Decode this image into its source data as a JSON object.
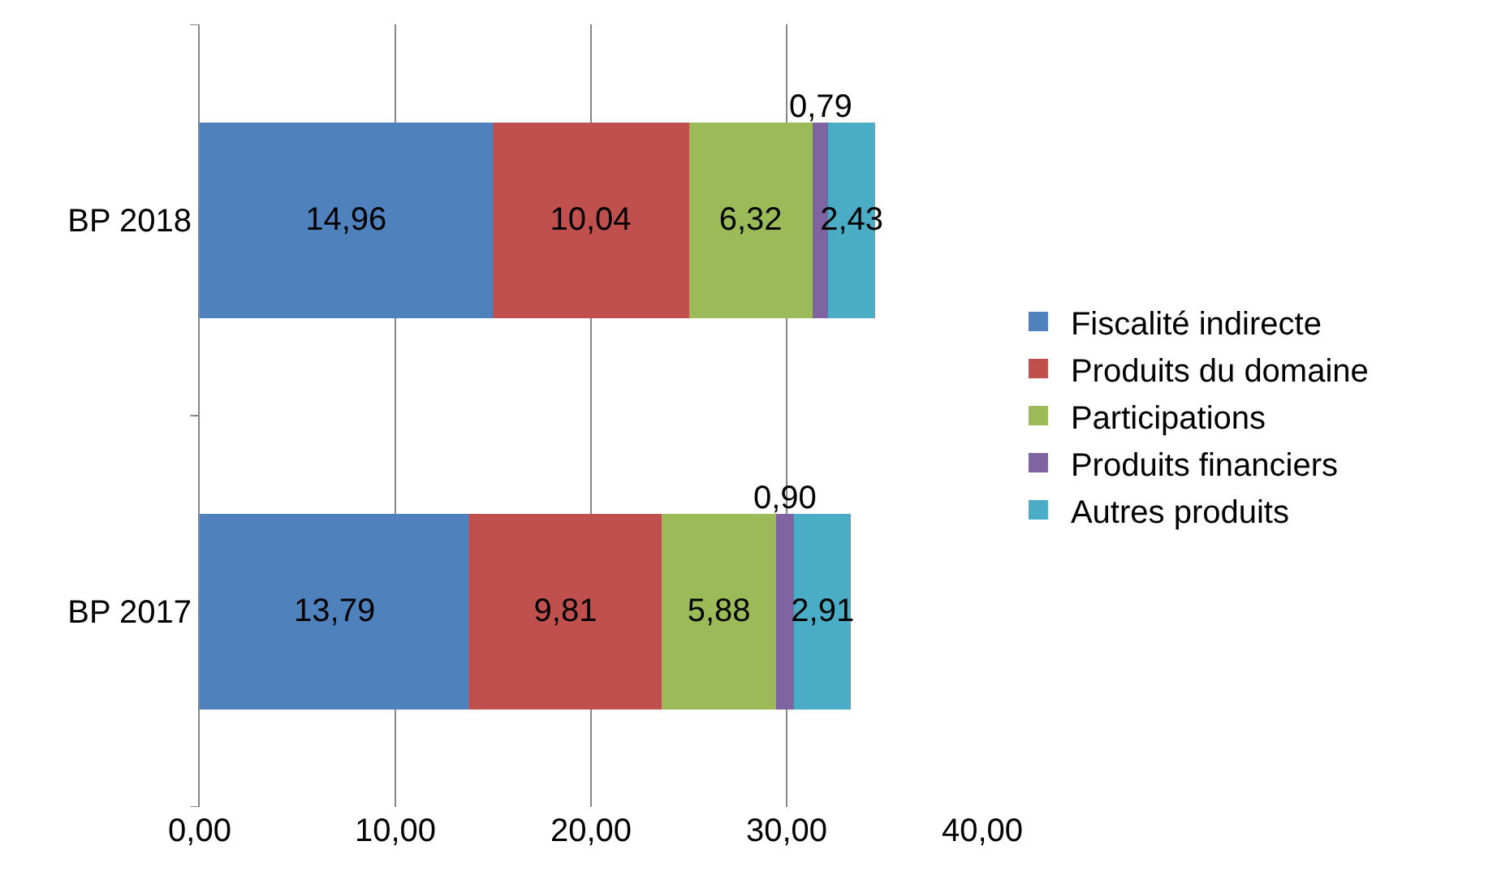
{
  "chart_data": {
    "type": "bar",
    "orientation": "horizontal",
    "stacked": true,
    "categories": [
      "BP 2018",
      "BP 2017"
    ],
    "series": [
      {
        "name": "Fiscalité indirecte",
        "color": "#4f81bd",
        "values": [
          14.96,
          13.79
        ],
        "value_labels": [
          "14,96",
          "13,79"
        ]
      },
      {
        "name": "Produits du domaine",
        "color": "#c0504d",
        "values": [
          10.04,
          9.81
        ],
        "value_labels": [
          "10,04",
          "9,81"
        ]
      },
      {
        "name": "Participations",
        "color": "#9bbb59",
        "values": [
          6.32,
          5.88
        ],
        "value_labels": [
          "6,32",
          "5,88"
        ]
      },
      {
        "name": "Produits financiers",
        "color": "#8064a2",
        "values": [
          0.79,
          0.9
        ],
        "value_labels": [
          "0,79",
          "0,90"
        ]
      },
      {
        "name": "Autres produits",
        "color": "#4bacc6",
        "values": [
          2.43,
          2.91
        ],
        "value_labels": [
          "2,43",
          "2,91"
        ]
      }
    ],
    "xlim": [
      0,
      40
    ],
    "xticks": [
      {
        "value": 0,
        "label": "0,00"
      },
      {
        "value": 10,
        "label": "10,00"
      },
      {
        "value": 20,
        "label": "20,00"
      },
      {
        "value": 30,
        "label": "30,00"
      },
      {
        "value": 40,
        "label": "40,00"
      }
    ],
    "grid": "x",
    "legend": "right"
  }
}
